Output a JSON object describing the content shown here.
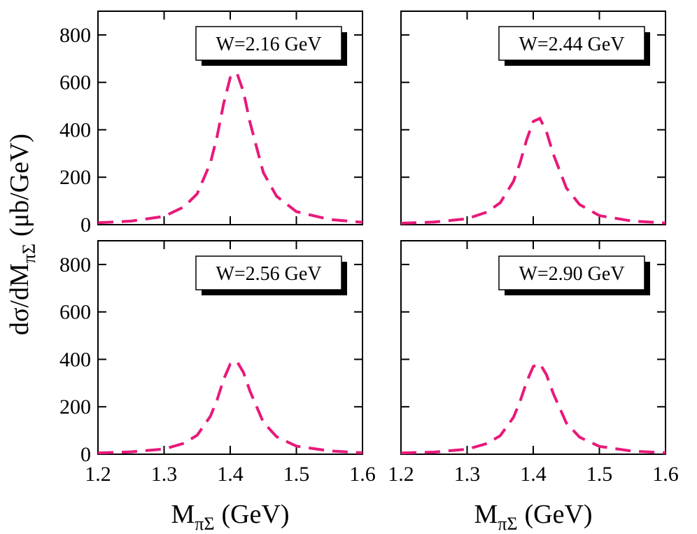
{
  "y_label": [
    "dσ/dM",
    "πΣ",
    "(μb/GeV)"
  ],
  "chart_data": [
    {
      "type": "line",
      "annotation": "W=2.16 GeV",
      "color": "#e8197a",
      "line_style": "dashed",
      "x": [
        1.2,
        1.25,
        1.3,
        1.33,
        1.35,
        1.37,
        1.38,
        1.39,
        1.4,
        1.41,
        1.42,
        1.43,
        1.45,
        1.47,
        1.5,
        1.55,
        1.6
      ],
      "values": [
        8,
        15,
        35,
        75,
        130,
        260,
        370,
        510,
        620,
        640,
        560,
        430,
        220,
        120,
        55,
        22,
        10
      ],
      "xlim": [
        1.2,
        1.6
      ],
      "xticks": [
        1.2,
        1.3,
        1.4,
        1.5,
        1.6
      ],
      "ylim": [
        0,
        900
      ],
      "yticks": [
        0,
        200,
        400,
        600,
        800
      ]
    },
    {
      "type": "line",
      "annotation": "W=2.44 GeV",
      "color": "#e8197a",
      "line_style": "dashed",
      "x": [
        1.2,
        1.25,
        1.3,
        1.33,
        1.35,
        1.37,
        1.38,
        1.39,
        1.4,
        1.41,
        1.42,
        1.43,
        1.45,
        1.47,
        1.5,
        1.55,
        1.6
      ],
      "values": [
        6,
        11,
        25,
        53,
        92,
        182,
        260,
        358,
        435,
        448,
        392,
        300,
        155,
        85,
        38,
        15,
        7
      ],
      "xlim": [
        1.2,
        1.6
      ],
      "xticks": [
        1.2,
        1.3,
        1.4,
        1.5,
        1.6
      ],
      "ylim": [
        0,
        900
      ],
      "yticks": [
        0,
        200,
        400,
        600,
        800
      ]
    },
    {
      "type": "line",
      "annotation": "W=2.56 GeV",
      "color": "#e8197a",
      "line_style": "dashed",
      "x": [
        1.2,
        1.25,
        1.3,
        1.33,
        1.35,
        1.37,
        1.38,
        1.39,
        1.4,
        1.41,
        1.42,
        1.43,
        1.45,
        1.47,
        1.5,
        1.55,
        1.6
      ],
      "values": [
        5,
        10,
        22,
        46,
        80,
        160,
        228,
        315,
        380,
        392,
        345,
        265,
        135,
        74,
        34,
        14,
        6
      ],
      "xlim": [
        1.2,
        1.6
      ],
      "xticks": [
        1.2,
        1.3,
        1.4,
        1.5,
        1.6
      ],
      "ylim": [
        0,
        900
      ],
      "yticks": [
        0,
        200,
        400,
        600,
        800
      ],
      "x_label": [
        "M",
        "πΣ",
        "(GeV)"
      ]
    },
    {
      "type": "line",
      "annotation": "W=2.90 GeV",
      "color": "#e8197a",
      "line_style": "dashed",
      "x": [
        1.2,
        1.25,
        1.3,
        1.33,
        1.35,
        1.37,
        1.38,
        1.39,
        1.4,
        1.41,
        1.42,
        1.43,
        1.45,
        1.47,
        1.5,
        1.55,
        1.6
      ],
      "values": [
        5,
        9,
        21,
        45,
        78,
        155,
        222,
        305,
        370,
        382,
        335,
        258,
        132,
        72,
        33,
        13,
        6
      ],
      "xlim": [
        1.2,
        1.6
      ],
      "xticks": [
        1.2,
        1.3,
        1.4,
        1.5,
        1.6
      ],
      "ylim": [
        0,
        900
      ],
      "yticks": [
        0,
        200,
        400,
        600,
        800
      ],
      "x_label": [
        "M",
        "πΣ",
        "(GeV)"
      ]
    }
  ]
}
